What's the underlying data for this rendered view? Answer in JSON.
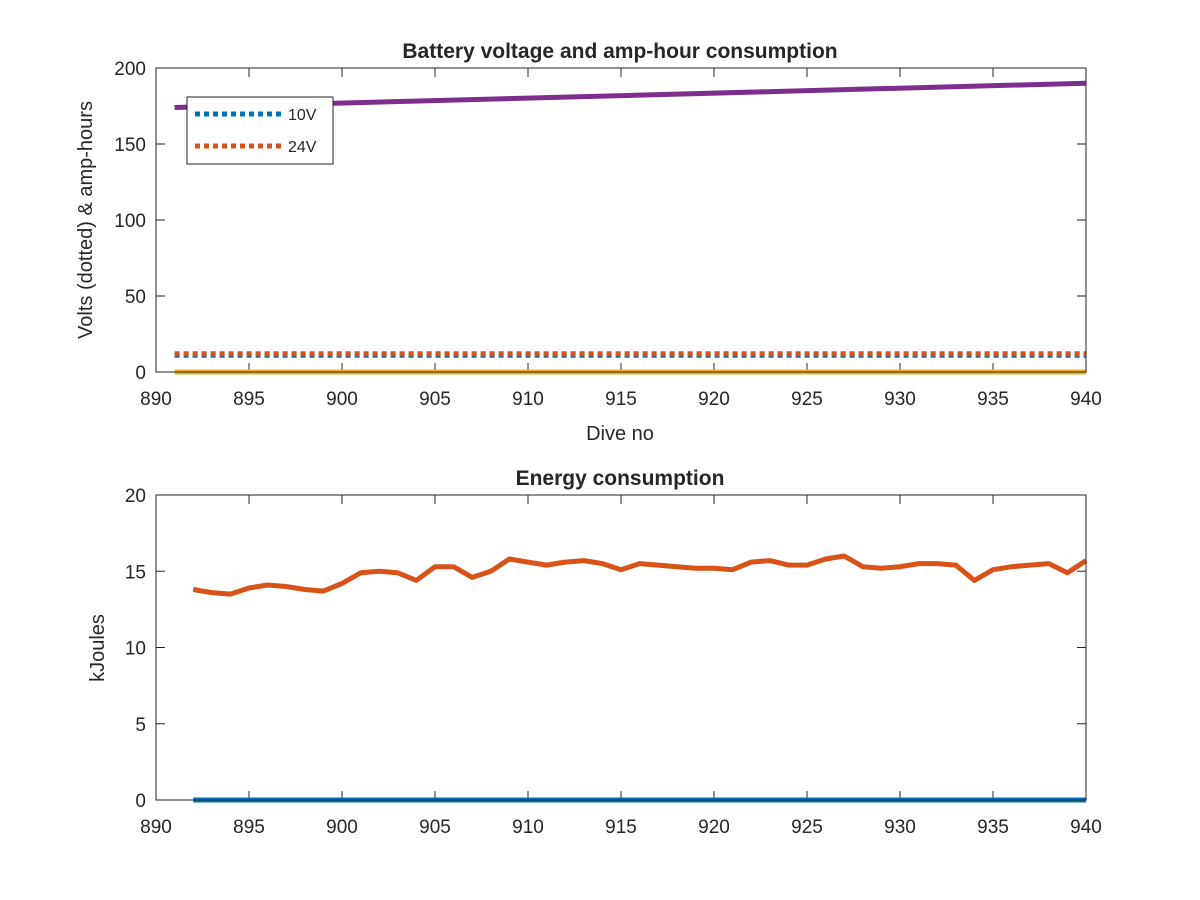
{
  "chart_data": [
    {
      "type": "line",
      "title": "Battery voltage and amp-hour consumption",
      "xlabel": "Dive no",
      "ylabel": "Volts (dotted) & amp-hours",
      "xlim": [
        890,
        940
      ],
      "ylim": [
        0,
        200
      ],
      "x_ticks": [
        "890",
        "895",
        "900",
        "905",
        "910",
        "915",
        "920",
        "925",
        "930",
        "935",
        "940"
      ],
      "y_ticks": [
        "0",
        "50",
        "100",
        "150",
        "200"
      ],
      "grid": false,
      "legend": {
        "placement": "top-left",
        "entries": [
          "10V",
          "24V"
        ]
      },
      "series": [
        {
          "name": "10V",
          "style": "dotted",
          "color": "#0072BD",
          "x": [
            891,
            940
          ],
          "y": [
            11,
            11
          ]
        },
        {
          "name": "24V",
          "style": "dotted",
          "color": "#D95319",
          "x": [
            891,
            940
          ],
          "y": [
            12,
            12
          ]
        },
        {
          "style": "solid",
          "color": "#EDB120",
          "x": [
            891,
            940
          ],
          "y": [
            0,
            0
          ]
        },
        {
          "style": "solid",
          "color": "#7E2F8E",
          "x": [
            891,
            940
          ],
          "y": [
            174,
            190
          ]
        }
      ]
    },
    {
      "type": "line",
      "title": "Energy consumption",
      "xlabel": "",
      "ylabel": "kJoules",
      "xlim": [
        890,
        940
      ],
      "ylim": [
        0,
        20
      ],
      "x_ticks": [
        "890",
        "895",
        "900",
        "905",
        "910",
        "915",
        "920",
        "925",
        "930",
        "935",
        "940"
      ],
      "y_ticks": [
        "0",
        "5",
        "10",
        "15",
        "20"
      ],
      "grid": false,
      "series": [
        {
          "style": "solid",
          "color": "#0072BD",
          "x": [
            892,
            940
          ],
          "y": [
            0,
            0
          ]
        },
        {
          "style": "solid",
          "color": "#D95319",
          "x": [
            892,
            893,
            894,
            895,
            896,
            897,
            898,
            899,
            900,
            901,
            902,
            903,
            904,
            905,
            906,
            907,
            908,
            909,
            910,
            911,
            912,
            913,
            914,
            915,
            916,
            917,
            918,
            919,
            920,
            921,
            922,
            923,
            924,
            925,
            926,
            927,
            928,
            929,
            930,
            931,
            932,
            933,
            934,
            935,
            936,
            937,
            938,
            939,
            940
          ],
          "y": [
            13.8,
            13.6,
            13.5,
            13.9,
            14.1,
            14.0,
            13.8,
            13.7,
            14.2,
            14.9,
            15.0,
            14.9,
            14.4,
            15.3,
            15.3,
            14.6,
            15.0,
            15.8,
            15.6,
            15.4,
            15.6,
            15.7,
            15.5,
            15.1,
            15.5,
            15.4,
            15.3,
            15.2,
            15.2,
            15.1,
            15.6,
            15.7,
            15.4,
            15.4,
            15.8,
            16.0,
            15.3,
            15.2,
            15.3,
            15.5,
            15.5,
            15.4,
            14.4,
            15.1,
            15.3,
            15.4,
            15.5,
            14.9,
            15.7
          ]
        }
      ]
    }
  ]
}
